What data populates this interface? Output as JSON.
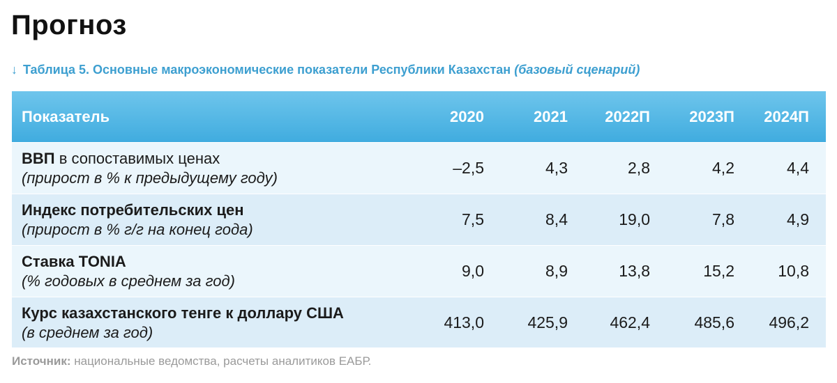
{
  "header": {
    "title": "Прогноз",
    "caption_arrow": "↓",
    "caption": "Таблица 5. Основные макроэкономические показатели Республики Казахстан",
    "caption_note": "(базовый сценарий)"
  },
  "table": {
    "columns": [
      "Показатель",
      "2020",
      "2021",
      "2022П",
      "2023П",
      "2024П"
    ],
    "rows": [
      {
        "name_bold": "ВВП",
        "name_rest": " в сопоставимых ценах",
        "sub": "(прирост в % к предыдущему году)",
        "values": [
          "–2,5",
          "4,3",
          "2,8",
          "4,2",
          "4,4"
        ]
      },
      {
        "name_bold": "Индекс потребительских цен",
        "name_rest": "",
        "sub": "(прирост в % г/г на конец года)",
        "values": [
          "7,5",
          "8,4",
          "19,0",
          "7,8",
          "4,9"
        ]
      },
      {
        "name_bold": "Ставка TONIA",
        "name_rest": "",
        "sub": "(% годовых в среднем за год)",
        "values": [
          "9,0",
          "8,9",
          "13,8",
          "15,2",
          "10,8"
        ]
      },
      {
        "name_bold": "Курс казахстанского тенге к доллару США",
        "name_rest": "",
        "sub": "(в среднем за год)",
        "values": [
          "413,0",
          "425,9",
          "462,4",
          "485,6",
          "496,2"
        ]
      }
    ]
  },
  "footer": {
    "source_label": "Источник:",
    "source_text": " национальные ведомства, расчеты аналитиков ЕАБР."
  },
  "colors": {
    "header_bg_top": "#6ec5ec",
    "header_bg_bottom": "#40acdf",
    "caption": "#3d9fd0",
    "row_light": "#ebf6fc",
    "row_dark": "#dcedf8"
  }
}
